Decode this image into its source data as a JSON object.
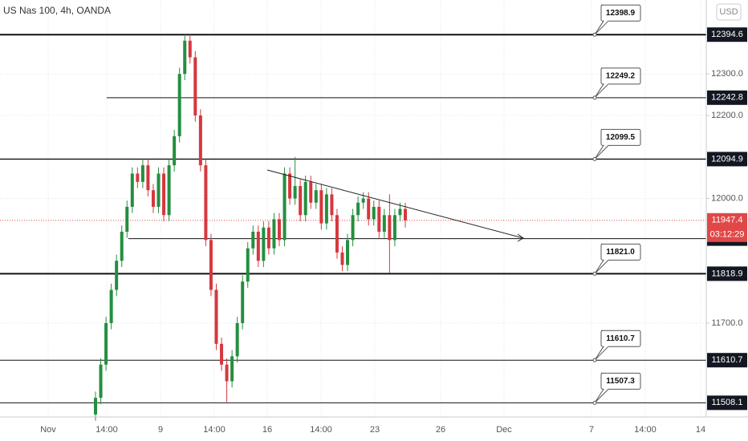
{
  "chart_data": {
    "type": "candlestick",
    "title": "US Nas 100, 4h, OANDA",
    "currency": "USD",
    "up_color": "#248f3f",
    "down_color": "#d5383e",
    "open": [
      11480,
      11520,
      11600,
      11700,
      11780,
      11850,
      11920,
      11980,
      12060,
      12040,
      12080,
      12020,
      11980,
      12060,
      11960,
      12080,
      12150,
      12300,
      12380,
      12340,
      12200,
      12080,
      11900,
      11780,
      11650,
      11600,
      11560,
      11620,
      11700,
      11800,
      11880,
      11920,
      11850,
      11930,
      11880,
      11950,
      11900,
      12060,
      12000,
      12030,
      11960,
      12040,
      11990,
      12020,
      11940,
      12010,
      11960,
      11870,
      11840,
      11900,
      11960,
      11990,
      12000,
      11950,
      11980,
      11920,
      11960,
      11900,
      11960,
      11975
    ],
    "high": [
      11535,
      11615,
      11715,
      11795,
      11865,
      11935,
      11995,
      12075,
      12075,
      12095,
      12095,
      12035,
      12075,
      12075,
      12095,
      12165,
      12315,
      12395,
      12395,
      12355,
      12215,
      12095,
      11915,
      11795,
      11665,
      11615,
      11635,
      11715,
      11815,
      11895,
      11935,
      11935,
      11945,
      11945,
      11965,
      11965,
      12075,
      12075,
      12100,
      12045,
      12055,
      12055,
      12035,
      12035,
      12025,
      12025,
      11975,
      11885,
      11915,
      11975,
      12005,
      12015,
      12015,
      11995,
      11995,
      11975,
      12010,
      11975,
      11990,
      11990
    ],
    "low": [
      11465,
      11505,
      11585,
      11685,
      11765,
      11835,
      11905,
      11965,
      12025,
      12025,
      12005,
      11965,
      11965,
      11945,
      11945,
      12065,
      12135,
      12285,
      12325,
      12185,
      12065,
      11885,
      11765,
      11635,
      11585,
      11510,
      11545,
      11605,
      11685,
      11785,
      11865,
      11835,
      11835,
      11865,
      11865,
      11885,
      11885,
      11985,
      11985,
      11945,
      11945,
      11975,
      11975,
      11925,
      11925,
      11945,
      11855,
      11825,
      11825,
      11885,
      11945,
      11975,
      11935,
      11935,
      11905,
      11905,
      11820,
      11885,
      11945,
      11930
    ],
    "close": [
      11520,
      11600,
      11700,
      11780,
      11850,
      11920,
      11980,
      12060,
      12040,
      12080,
      12020,
      11980,
      12060,
      11960,
      12080,
      12150,
      12300,
      12380,
      12340,
      12200,
      12080,
      11900,
      11780,
      11650,
      11600,
      11560,
      11620,
      11700,
      11800,
      11880,
      11920,
      11850,
      11930,
      11880,
      11950,
      11900,
      12060,
      12000,
      12030,
      11960,
      12040,
      11990,
      12020,
      11940,
      12010,
      11960,
      11870,
      11840,
      11900,
      11960,
      11990,
      12000,
      11950,
      11980,
      11920,
      11960,
      11900,
      11960,
      11975,
      11947.4
    ],
    "ylim": [
      11474,
      12478
    ],
    "yticks": [
      {
        "value": 12300,
        "label": "12300.0"
      },
      {
        "value": 12200,
        "label": "12200.0"
      },
      {
        "value": 12000,
        "label": "12000.0"
      },
      {
        "value": 11700,
        "label": "11700.0"
      }
    ],
    "xticks": [
      "Nov",
      "14:00",
      "9",
      "14:00",
      "16",
      "14:00",
      "23",
      "26",
      "Dec",
      "7",
      "14:00",
      "14"
    ],
    "levels": [
      {
        "price": 12394.6,
        "note": 12398.9
      },
      {
        "price": 12242.8,
        "note": 12249.2
      },
      {
        "price": 12094.9,
        "note": 12099.5
      },
      {
        "price": 11903.4
      },
      {
        "price": 11818.9,
        "note": {
          "value": 11821,
          "label": "11821.0"
        }
      },
      {
        "price": 11610.7,
        "note": 11610.7
      },
      {
        "price": 11508.1,
        "note": 11507.3
      }
    ],
    "last_price": 11947.4,
    "countdown": "03:12:29",
    "grid": true
  }
}
